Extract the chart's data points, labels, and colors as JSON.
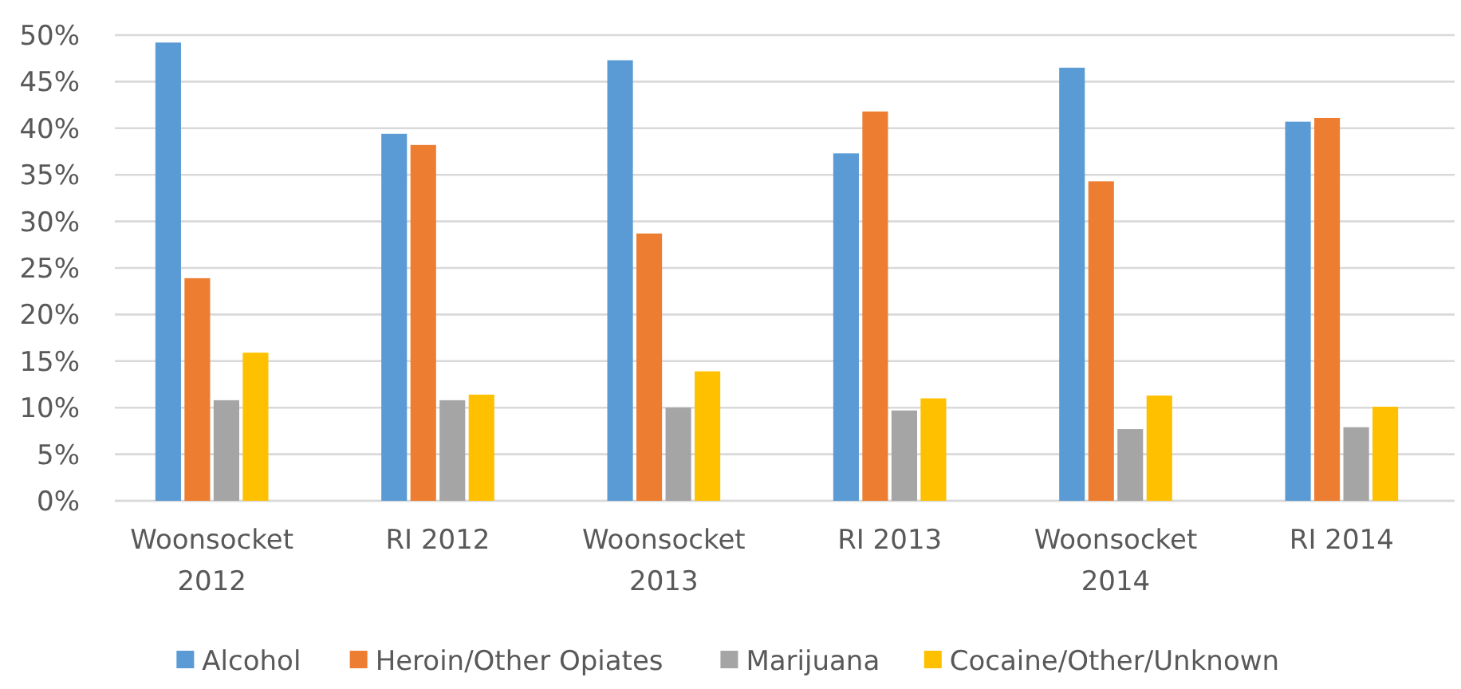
{
  "chart_data": {
    "type": "bar",
    "categories": [
      "Woonsocket 2012",
      "RI 2012",
      "Woonsocket 2013",
      "RI 2013",
      "Woonsocket 2014",
      "RI 2014"
    ],
    "series": [
      {
        "name": "Alcohol",
        "color": "#5b9bd5",
        "values": [
          49.2,
          39.4,
          47.3,
          37.3,
          46.5,
          40.7
        ]
      },
      {
        "name": "Heroin/Other Opiates",
        "color": "#ed7d31",
        "values": [
          23.9,
          38.2,
          28.7,
          41.8,
          34.3,
          41.1
        ]
      },
      {
        "name": "Marijuana",
        "color": "#a5a5a5",
        "values": [
          10.8,
          10.8,
          10.0,
          9.7,
          7.7,
          7.9
        ]
      },
      {
        "name": "Cocaine/Other/Unknown",
        "color": "#ffc000",
        "values": [
          15.9,
          11.4,
          13.9,
          11.0,
          11.3,
          10.1
        ]
      }
    ],
    "ylim": [
      0,
      50
    ],
    "yticks": [
      {
        "value": 0,
        "label": "0%"
      },
      {
        "value": 5,
        "label": "5%"
      },
      {
        "value": 10,
        "label": "10%"
      },
      {
        "value": 15,
        "label": "15%"
      },
      {
        "value": 20,
        "label": "20%"
      },
      {
        "value": 25,
        "label": "25%"
      },
      {
        "value": 30,
        "label": "30%"
      },
      {
        "value": 35,
        "label": "35%"
      },
      {
        "value": 40,
        "label": "40%"
      },
      {
        "value": 45,
        "label": "45%"
      },
      {
        "value": 50,
        "label": "50%"
      }
    ],
    "grid": "y",
    "legend": "bottom"
  }
}
